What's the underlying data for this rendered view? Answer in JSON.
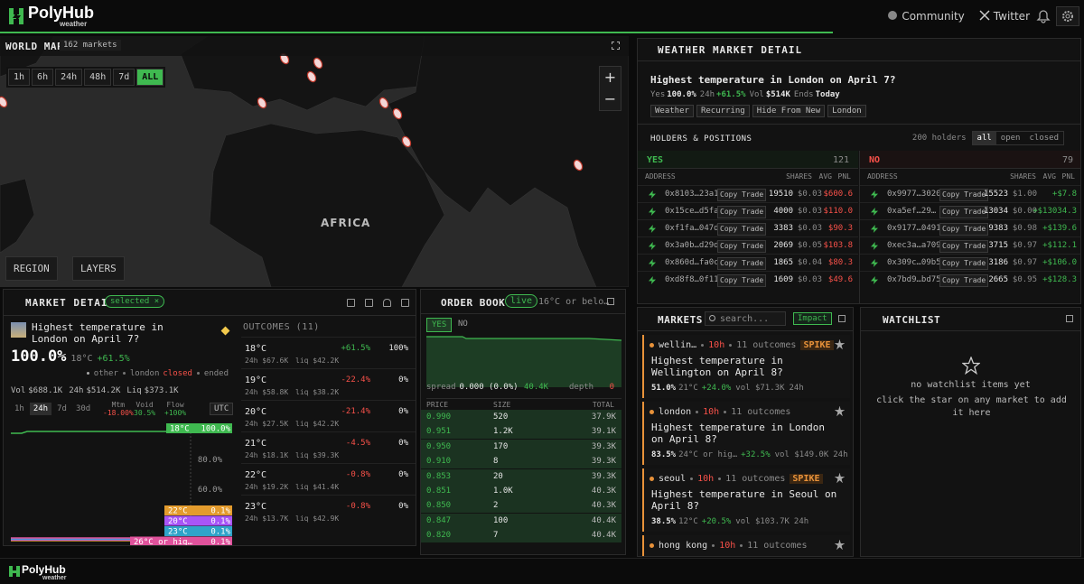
{
  "header": {
    "brand": "PolyHub",
    "sub": "weather",
    "links": [
      "Community",
      "Twitter"
    ]
  },
  "world_map": {
    "title": "WORLD MAP",
    "count": "162 markets",
    "ranges": [
      "1h",
      "6h",
      "24h",
      "48h",
      "7d",
      "ALL"
    ],
    "active_range": 5,
    "region_label": "AFRICA",
    "zoom": [
      "+",
      "−"
    ],
    "controls": [
      "REGION",
      "LAYERS"
    ]
  },
  "weather_detail": {
    "title": "WEATHER MARKET DETAIL",
    "question": "Highest temperature in London on April 7?",
    "stats": [
      {
        "label": "Yes",
        "value": "100.0%"
      },
      {
        "label": "24h",
        "value": "+61.5%"
      },
      {
        "label": "Vol",
        "value": "$514K"
      },
      {
        "label": "Ends",
        "value": "Today"
      }
    ],
    "tags": [
      "Weather",
      "Recurring",
      "Hide From New",
      "London"
    ],
    "holders": {
      "title": "HOLDERS & POSITIONS",
      "count": "200 holders",
      "filters": [
        "all",
        "open",
        "closed"
      ],
      "active_filter": 0,
      "action": "Copy Trade",
      "sides": [
        {
          "name": "YES",
          "count": "121",
          "columns": [
            "ADDRESS",
            "SHARES",
            "AVG",
            "PNL"
          ],
          "rows": [
            [
              "0x8103…23a1",
              "19510",
              "$0.03",
              "$600.6"
            ],
            [
              "0x15ce…d5fa",
              "4000",
              "$0.03",
              "$110.0"
            ],
            [
              "0xf1fa…047d",
              "3383",
              "$0.03",
              "$90.3"
            ],
            [
              "0x3a0b…d29d",
              "2069",
              "$0.05",
              "$103.8"
            ],
            [
              "0x860d…fa0c",
              "1865",
              "$0.04",
              "$80.3"
            ],
            [
              "0xd8f8…0f11",
              "1609",
              "$0.03",
              "$49.6"
            ]
          ]
        },
        {
          "name": "NO",
          "count": "79",
          "columns": [
            "ADDRESS",
            "SHARES",
            "AVG",
            "PNL"
          ],
          "rows": [
            [
              "0x9977…3020",
              "15523",
              "$1.00",
              "+$7.8"
            ],
            [
              "0xa5ef…29…",
              "13034",
              "$0.00",
              "+$13034.3"
            ],
            [
              "0x9177…0491",
              "9383",
              "$0.98",
              "+$139.6"
            ],
            [
              "0xec3a…a709",
              "3715",
              "$0.97",
              "+$112.1"
            ],
            [
              "0x309c…09b5",
              "3186",
              "$0.97",
              "+$106.0"
            ],
            [
              "0x7bd9…bd75",
              "2665",
              "$0.95",
              "+$128.3"
            ]
          ]
        }
      ]
    }
  },
  "market_detail": {
    "title": "MARKET DETAIL",
    "badge": "selected ×",
    "question": "Highest temperature in London on April 7?",
    "price": "100.0%",
    "outcome": "18°C",
    "change": "+61.5%",
    "status": {
      "group": "other",
      "city": "london",
      "state": "closed",
      "end": "ended"
    },
    "volume": [
      {
        "label": "Vol",
        "value": "$688.1K"
      },
      {
        "label": "24h",
        "value": "$514.2K"
      },
      {
        "label": "Liq",
        "value": "$373.1K"
      }
    ],
    "ranges": [
      "1h",
      "24h",
      "7d",
      "30d"
    ],
    "active_range": 1,
    "metrics": [
      {
        "label": "Mtm",
        "value": "-18.00%"
      },
      {
        "label": "Void",
        "value": "30.5%"
      },
      {
        "label": "Flow",
        "value": "+100%"
      }
    ],
    "tz": "UTC",
    "chart": {
      "yticks": [
        "80.0%",
        "60.0%"
      ],
      "series": [
        {
          "name": "18°C",
          "value": "100.0%",
          "color": "#3fb950"
        },
        {
          "name": "22°C",
          "value": "0.1%",
          "color": "#e39b2d"
        },
        {
          "name": "20°C",
          "value": "0.1%",
          "color": "#a855f7"
        },
        {
          "name": "23°C",
          "value": "0.1%",
          "color": "#2fa4c9"
        },
        {
          "name": "26°C or hig…",
          "value": "0.1%",
          "color": "#e0529c"
        }
      ]
    },
    "outcomes_title": "OUTCOMES (11)",
    "outcomes": [
      {
        "name": "18°C",
        "vol": "24h $67.6K",
        "liq": "liq $42.2K",
        "change": "+61.5%",
        "prob": "100%"
      },
      {
        "name": "19°C",
        "vol": "24h $58.8K",
        "liq": "liq $38.2K",
        "change": "-22.4%",
        "prob": "0%"
      },
      {
        "name": "20°C",
        "vol": "24h $27.5K",
        "liq": "liq $42.2K",
        "change": "-21.4%",
        "prob": "0%"
      },
      {
        "name": "21°C",
        "vol": "24h $18.1K",
        "liq": "liq $39.3K",
        "change": "-4.5%",
        "prob": "0%"
      },
      {
        "name": "22°C",
        "vol": "24h $19.2K",
        "liq": "liq $41.4K",
        "change": "-0.8%",
        "prob": "0%"
      },
      {
        "name": "23°C",
        "vol": "24h $13.7K",
        "liq": "liq $42.9K",
        "change": "-0.8%",
        "prob": "0%"
      }
    ]
  },
  "order_book": {
    "title": "ORDER BOOK",
    "badge": "live",
    "outcome": "16°C or belo…",
    "tabs": [
      "YES",
      "NO"
    ],
    "active_tab": 0,
    "spread_label": "spread",
    "spread": "0.000 (0.0%)",
    "size": "40.4K",
    "depth_label": "depth",
    "depth": "0",
    "columns": [
      "PRICE",
      "SIZE",
      "TOTAL"
    ],
    "rows": [
      [
        "0.990",
        "520",
        "37.9K"
      ],
      [
        "0.951",
        "1.2K",
        "39.1K"
      ],
      [
        "0.950",
        "170",
        "39.3K"
      ],
      [
        "0.910",
        "8",
        "39.3K"
      ],
      [
        "0.853",
        "20",
        "39.3K"
      ],
      [
        "0.851",
        "1.0K",
        "40.3K"
      ],
      [
        "0.850",
        "2",
        "40.3K"
      ],
      [
        "0.847",
        "100",
        "40.4K"
      ],
      [
        "0.820",
        "7",
        "40.4K"
      ]
    ]
  },
  "markets": {
    "title": "MARKETS",
    "search": "search...",
    "sort": "Impact",
    "items": [
      {
        "city": "wellin…",
        "time": "10h",
        "outcomes": "11 outcomes",
        "flag": "SPIKE",
        "question": "Highest temperature in Wellington on April 8?",
        "price": "51.0%",
        "outcome": "21°C",
        "change": "+24.0%",
        "vol": "vol $71.3K",
        "period": "24h"
      },
      {
        "city": "london",
        "time": "10h",
        "outcomes": "11 outcomes",
        "question": "Highest temperature in London on April 8?",
        "price": "83.5%",
        "outcome": "24°C or hig…",
        "change": "+32.5%",
        "vol": "vol $149.0K",
        "period": "24h"
      },
      {
        "city": "seoul",
        "time": "10h",
        "outcomes": "11 outcomes",
        "flag": "SPIKE",
        "question": "Highest temperature in Seoul on April 8?",
        "price": "38.5%",
        "outcome": "12°C",
        "change": "+20.5%",
        "vol": "vol $103.7K",
        "period": "24h"
      },
      {
        "city": "hong kong",
        "time": "10h",
        "outcomes": "11 outcomes"
      }
    ]
  },
  "watchlist": {
    "title": "WATCHLIST",
    "empty": "no watchlist items yet",
    "hint": "click the star on any market to add it here"
  },
  "footer": {
    "brand": "PolyHub",
    "sub": "weather"
  }
}
